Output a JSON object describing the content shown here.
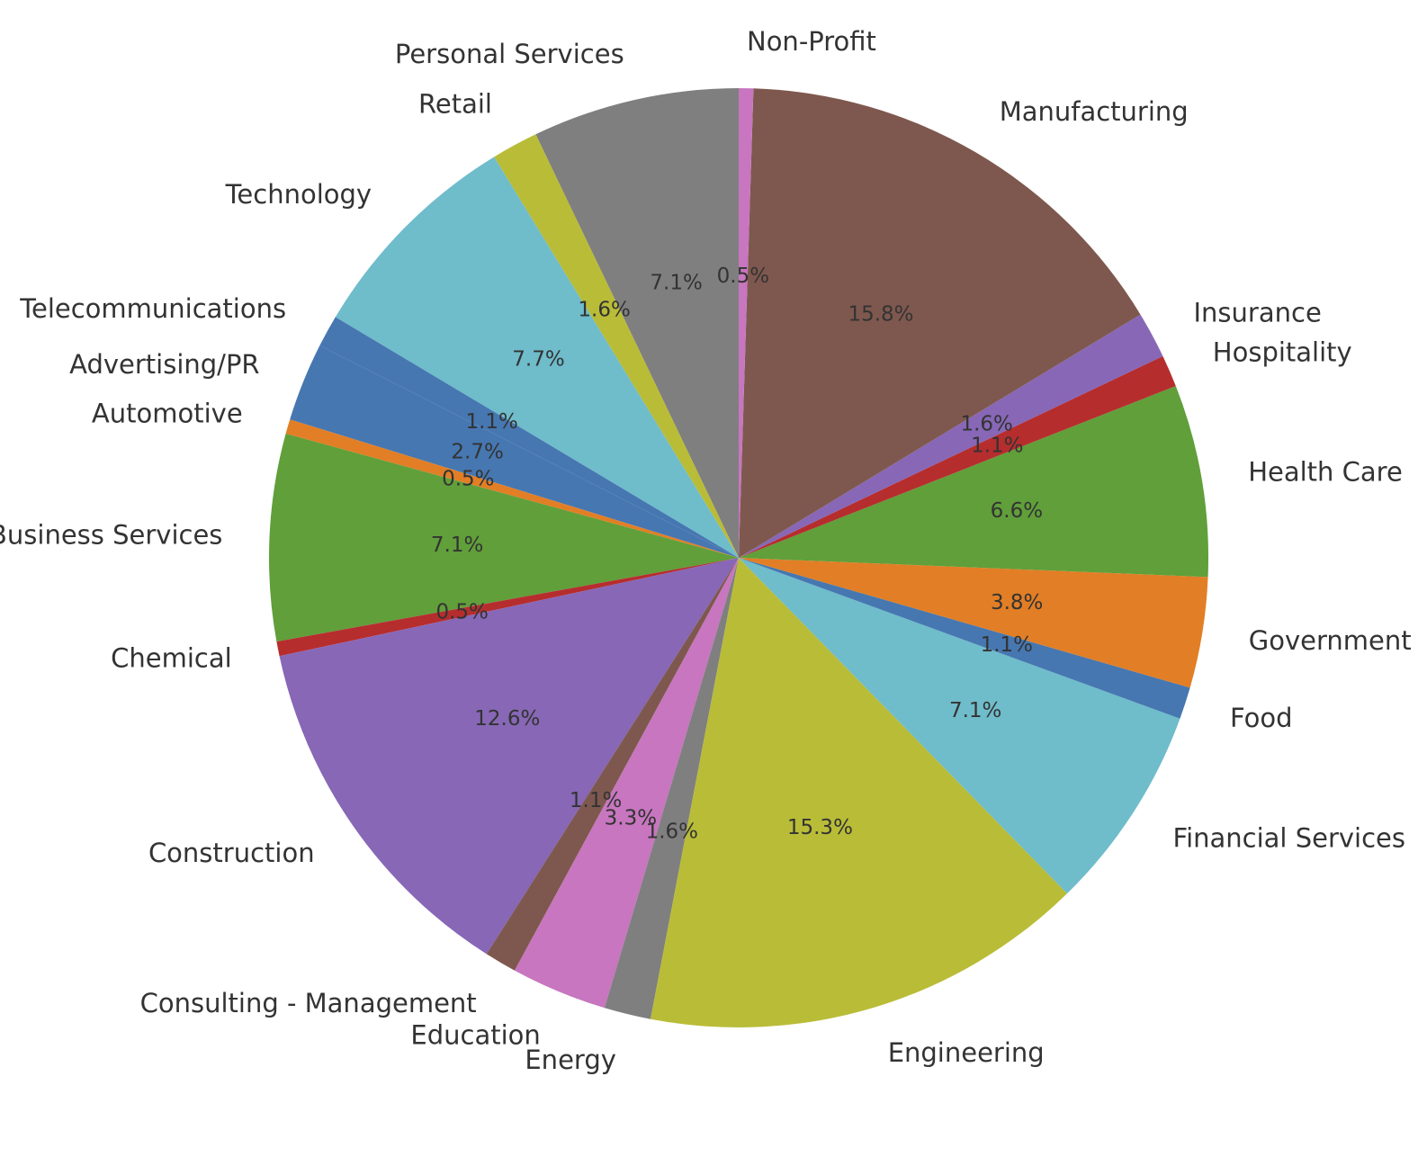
{
  "chart_data": {
    "type": "pie",
    "title": "",
    "start_angle_deg": 90,
    "direction": "counterclockwise",
    "legend": "none",
    "slices": [
      {
        "label": "Personal Services",
        "pct": "7.1%",
        "value": 7.1,
        "color": "#7f7f7f"
      },
      {
        "label": "Retail",
        "pct": "1.6%",
        "value": 1.6,
        "color": "#bcbd22"
      },
      {
        "label": "Technology",
        "pct": "7.7%",
        "value": 7.7,
        "color": "#17becf"
      },
      {
        "label": "Telecommunications",
        "pct": "1.1%",
        "value": 1.1,
        "color": "#1f77b4"
      },
      {
        "label": "Advertising/PR",
        "pct": "2.7%",
        "value": 2.7,
        "color": "#1f77b4"
      },
      {
        "label": "Automotive",
        "pct": "0.5%",
        "value": 0.5,
        "color": "#ff7f0e"
      },
      {
        "label": "Business Services",
        "pct": "7.1%",
        "value": 7.1,
        "color": "#2ca02c"
      },
      {
        "label": "Chemical",
        "pct": "0.5%",
        "value": 0.5,
        "color": "#d62728"
      },
      {
        "label": "Construction",
        "pct": "12.6%",
        "value": 12.6,
        "color": "#9467bd"
      },
      {
        "label": "Consulting - Management",
        "pct": "1.1%",
        "value": 1.1,
        "color": "#8c564b"
      },
      {
        "label": "Education",
        "pct": "3.3%",
        "value": 3.3,
        "color": "#e377c2"
      },
      {
        "label": "Energy",
        "pct": "1.6%",
        "value": 1.6,
        "color": "#7f7f7f"
      },
      {
        "label": "Engineering",
        "pct": "15.3%",
        "value": 15.3,
        "color": "#bcbd22"
      },
      {
        "label": "Financial Services",
        "pct": "7.1%",
        "value": 7.1,
        "color": "#17becf"
      },
      {
        "label": "Food",
        "pct": "1.1%",
        "value": 1.1,
        "color": "#1f77b4"
      },
      {
        "label": "Government",
        "pct": "3.8%",
        "value": 3.8,
        "color": "#ff7f0e"
      },
      {
        "label": "Health Care",
        "pct": "6.6%",
        "value": 6.6,
        "color": "#2ca02c"
      },
      {
        "label": "Hospitality",
        "pct": "1.1%",
        "value": 1.1,
        "color": "#d62728"
      },
      {
        "label": "Insurance",
        "pct": "1.6%",
        "value": 1.6,
        "color": "#9467bd"
      },
      {
        "label": "Manufacturing",
        "pct": "15.8%",
        "value": 15.8,
        "color": "#8c564b"
      },
      {
        "label": "Non-Profit",
        "pct": "0.5%",
        "value": 0.5,
        "color": "#e377c2"
      }
    ]
  }
}
